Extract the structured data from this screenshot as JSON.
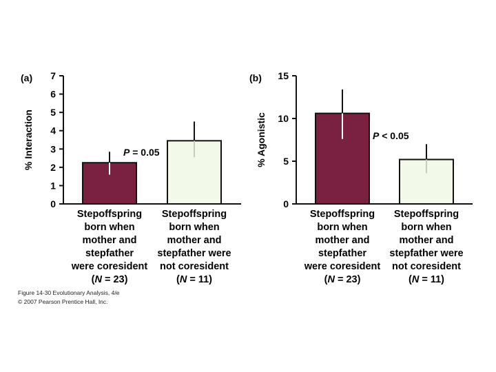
{
  "chart_data": [
    {
      "panel_label": "(a)",
      "type": "bar",
      "ylabel": "% Interaction",
      "ylim": [
        0,
        7
      ],
      "yticks": [
        0,
        1,
        2,
        3,
        4,
        5,
        6,
        7
      ],
      "categories": [
        [
          "Stepoffspring",
          "born when",
          "mother and",
          "stepfather",
          "were coresident",
          "(N = 23)"
        ],
        [
          "Stepoffspring",
          "born when",
          "mother and",
          "stepfather were",
          "not coresident",
          "(N = 11)"
        ]
      ],
      "values": [
        2.25,
        3.45
      ],
      "error_upper": [
        2.85,
        4.5
      ],
      "error_lower": [
        1.6,
        2.55
      ],
      "bar_colors": [
        "#7a2141",
        "#f3f9e8"
      ],
      "annotation": "P = 0.05"
    },
    {
      "panel_label": "(b)",
      "type": "bar",
      "ylabel": "% Agonistic",
      "ylim": [
        0,
        15
      ],
      "yticks": [
        0,
        5,
        10,
        15
      ],
      "categories": [
        [
          "Stepoffspring",
          "born when",
          "mother and",
          "stepfather",
          "were coresident",
          "(N = 23)"
        ],
        [
          "Stepoffspring",
          "born when",
          "mother and",
          "stepfather were",
          "not coresident",
          "(N = 11)"
        ]
      ],
      "values": [
        10.6,
        5.2
      ],
      "error_upper": [
        13.4,
        7.0
      ],
      "error_lower": [
        7.6,
        3.6
      ],
      "bar_colors": [
        "#7a2141",
        "#f3f9e8"
      ],
      "annotation": "P < 0.05"
    }
  ],
  "caption": {
    "figure_line": "Figure 14-30 Evolutionary Analysis, 4/e",
    "copyright_line": "© 2007 Pearson Prentice Hall, Inc."
  }
}
